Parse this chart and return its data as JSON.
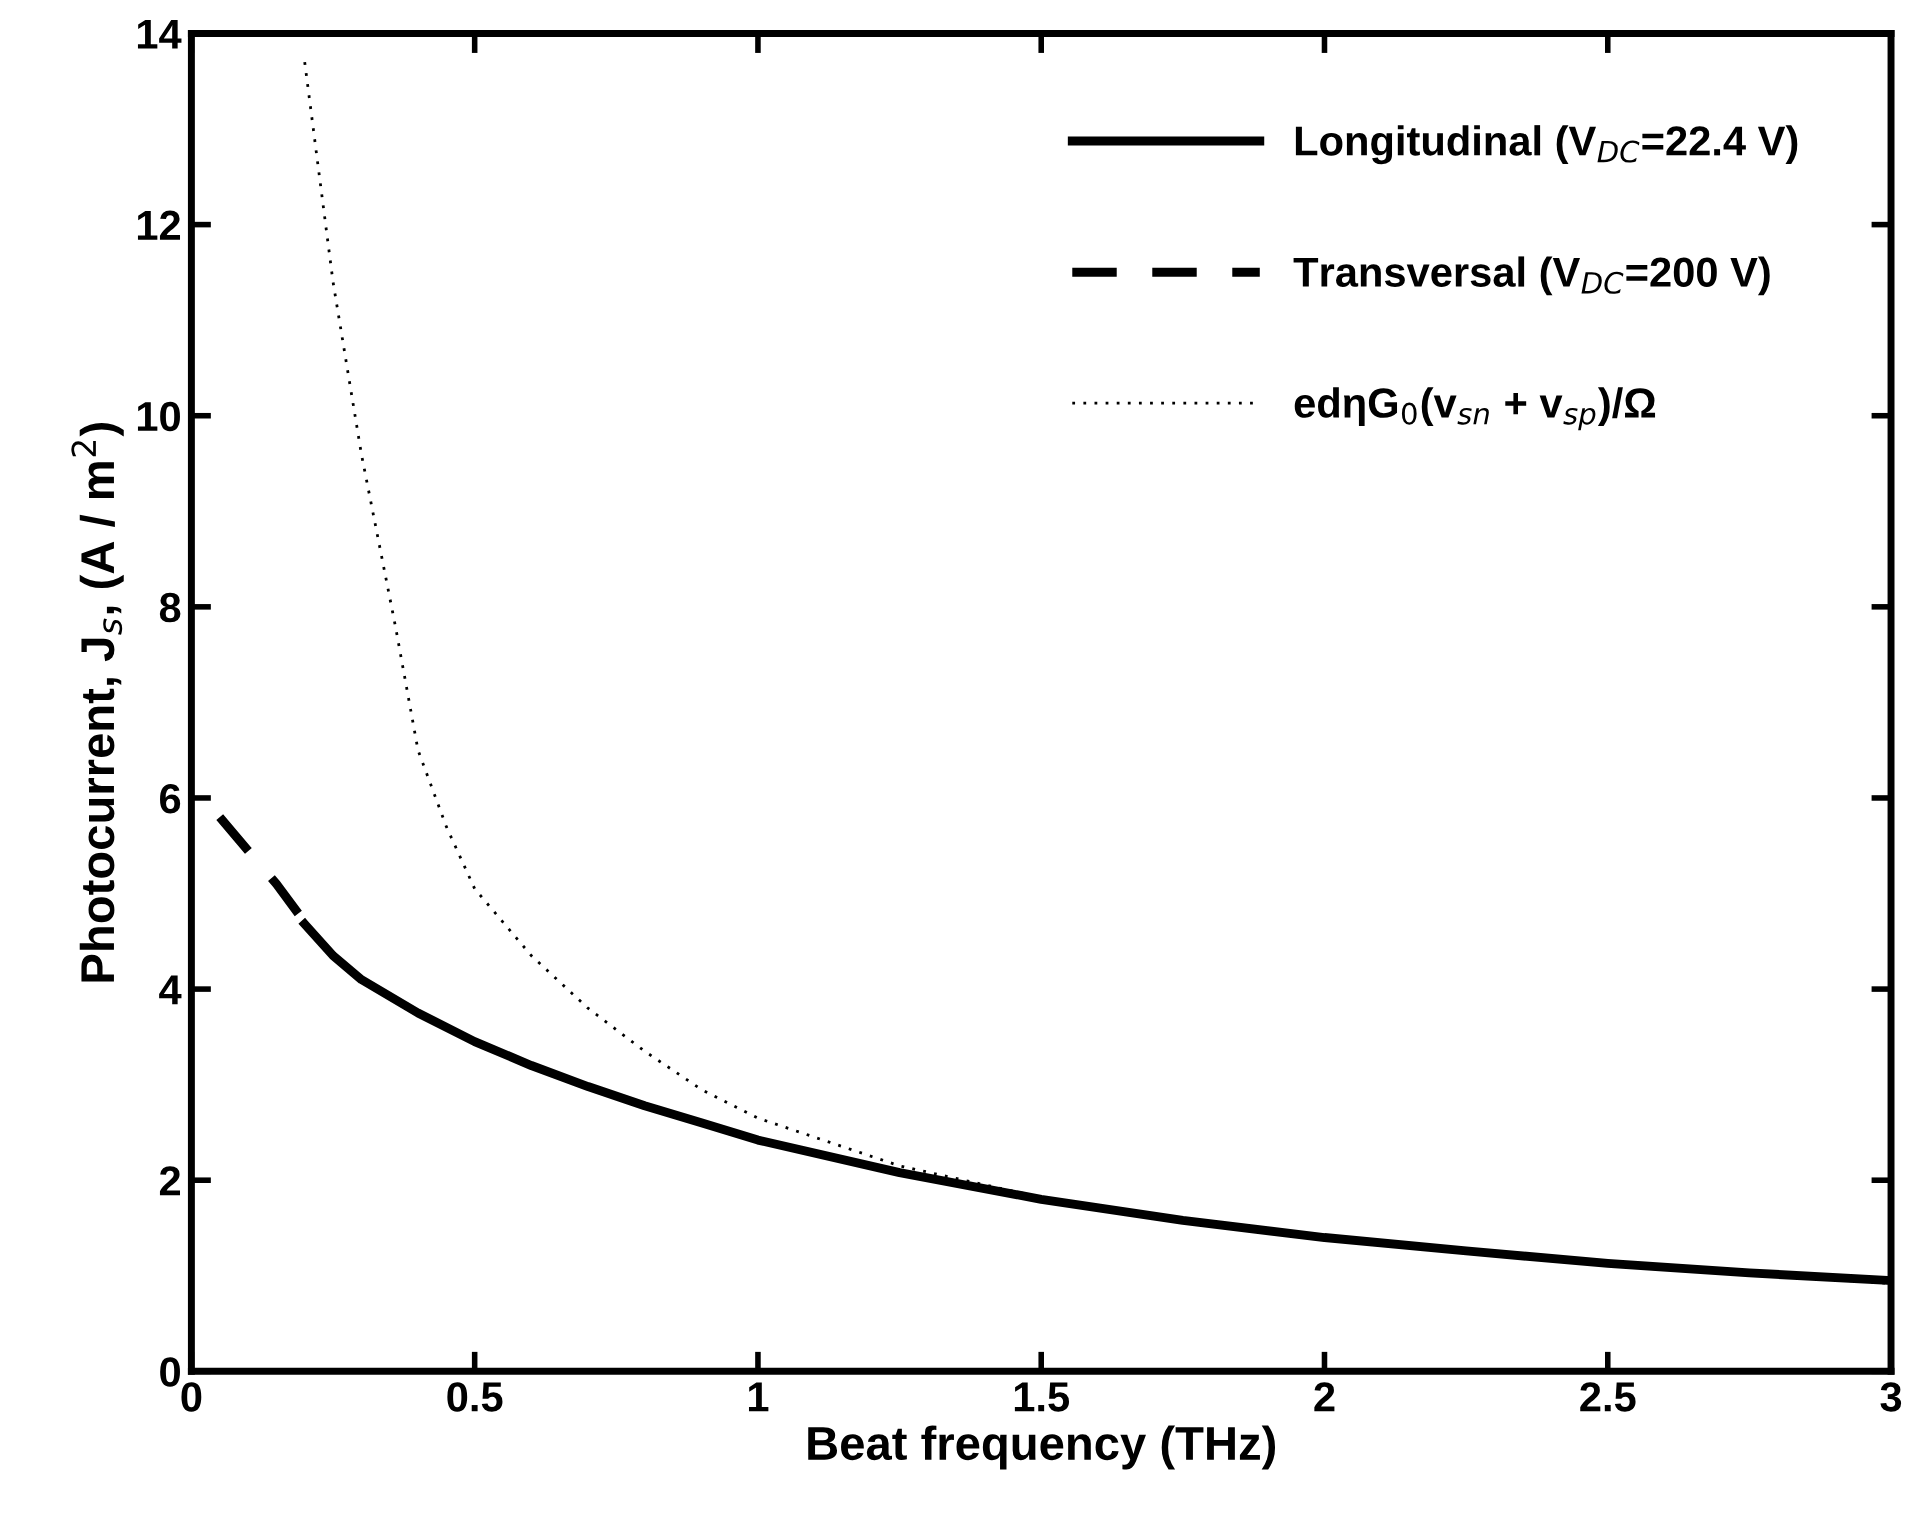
{
  "chart_data": {
    "type": "line",
    "xlabel": "Beat frequency (THz)",
    "ylabel": "Photocurrent, J$_{s}$, (A / m$^{2}$)",
    "xlim": [
      0,
      3
    ],
    "xticks": [
      0,
      0.5,
      1,
      1.5,
      2,
      2.5,
      3
    ],
    "ylim": [
      0,
      14
    ],
    "yticks": [
      0,
      2,
      4,
      6,
      8,
      10,
      12,
      14
    ],
    "grid": false,
    "legend": "top right",
    "series": [
      {
        "name": "Longitudinal (V$_{DC}$=22.4 V)",
        "color": "#000000",
        "line_style": "solid",
        "x": [
          0.2,
          0.25,
          0.3,
          0.4,
          0.5,
          0.6,
          0.7,
          0.8,
          0.9,
          1.0,
          1.25,
          1.5,
          1.75,
          2.0,
          2.25,
          2.5,
          2.75,
          3.0
        ],
        "values": [
          4.68,
          4.35,
          4.1,
          3.75,
          3.45,
          3.2,
          2.98,
          2.78,
          2.6,
          2.42,
          2.08,
          1.8,
          1.58,
          1.4,
          1.26,
          1.13,
          1.03,
          0.95
        ]
      },
      {
        "name": "Transversal (V$_{DC}$=200 V)",
        "color": "#000000",
        "line_style": "dashed",
        "x": [
          0.05,
          0.1,
          0.15,
          0.2
        ],
        "values": [
          5.8,
          5.45,
          5.1,
          4.7
        ]
      },
      {
        "name": "edηG$_{0}$(v$_{sn}$ + v$_{sp}$)/Ω",
        "color": "#000000",
        "line_style": "dotted",
        "x": [
          0.2,
          0.25,
          0.3,
          0.36,
          0.4,
          0.45,
          0.5,
          0.6,
          0.7,
          0.8,
          0.9,
          1.0,
          1.25,
          1.5,
          1.75,
          2.0,
          2.5,
          3.0
        ],
        "values": [
          13.7,
          11.4,
          9.6,
          7.8,
          6.5,
          5.7,
          5.05,
          4.35,
          3.8,
          3.35,
          2.95,
          2.65,
          2.15,
          1.82,
          1.58,
          1.4,
          1.12,
          0.92
        ]
      }
    ]
  }
}
